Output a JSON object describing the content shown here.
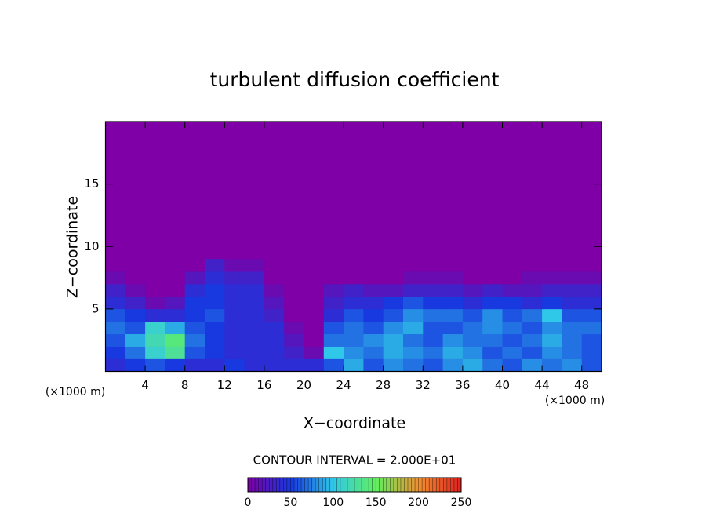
{
  "chart_data": {
    "type": "heatmap",
    "title": "turbulent diffusion coefficient",
    "x_label": "X−coordinate",
    "y_label": "Z−coordinate",
    "x_unit": "(×1000 m)",
    "y_unit": "(×1000 m)",
    "contour_note": "CONTOUR INTERVAL = 2.000E+01",
    "xlim": [
      0,
      50
    ],
    "ylim": [
      0,
      20
    ],
    "xticks": [
      4,
      8,
      12,
      16,
      20,
      24,
      28,
      32,
      36,
      40,
      44,
      48
    ],
    "yticks": [
      5,
      10,
      15
    ],
    "x_edges": [
      0,
      2,
      4,
      6,
      8,
      10,
      12,
      14,
      16,
      18,
      20,
      22,
      24,
      26,
      28,
      30,
      32,
      34,
      36,
      38,
      40,
      42,
      44,
      46,
      48,
      50
    ],
    "z_edges": [
      0,
      1,
      2,
      3,
      4,
      5,
      6,
      7,
      8,
      9
    ],
    "values": [
      [
        40,
        50,
        60,
        50,
        40,
        40,
        50,
        40,
        40,
        40,
        40,
        60,
        90,
        60,
        80,
        70,
        60,
        80,
        90,
        70,
        60,
        80,
        70,
        80,
        60
      ],
      [
        50,
        70,
        110,
        130,
        60,
        50,
        40,
        40,
        40,
        30,
        10,
        100,
        80,
        70,
        90,
        80,
        70,
        90,
        80,
        60,
        70,
        60,
        80,
        70,
        60
      ],
      [
        60,
        90,
        120,
        140,
        70,
        50,
        40,
        40,
        40,
        20,
        0,
        70,
        70,
        80,
        90,
        70,
        60,
        80,
        70,
        70,
        60,
        70,
        90,
        70,
        60
      ],
      [
        70,
        60,
        110,
        90,
        60,
        50,
        40,
        40,
        40,
        10,
        0,
        60,
        70,
        60,
        80,
        90,
        60,
        60,
        70,
        80,
        70,
        60,
        80,
        70,
        70
      ],
      [
        60,
        50,
        40,
        40,
        50,
        60,
        40,
        40,
        30,
        0,
        0,
        40,
        60,
        50,
        60,
        80,
        70,
        70,
        60,
        80,
        60,
        70,
        100,
        60,
        60
      ],
      [
        40,
        30,
        10,
        20,
        50,
        50,
        40,
        40,
        20,
        0,
        0,
        30,
        40,
        40,
        50,
        60,
        50,
        50,
        40,
        50,
        50,
        40,
        50,
        40,
        40
      ],
      [
        30,
        10,
        0,
        0,
        40,
        50,
        40,
        40,
        10,
        0,
        0,
        20,
        30,
        20,
        20,
        30,
        30,
        30,
        20,
        30,
        20,
        20,
        30,
        30,
        30
      ],
      [
        10,
        0,
        0,
        0,
        20,
        40,
        30,
        30,
        0,
        0,
        0,
        0,
        0,
        0,
        0,
        10,
        10,
        10,
        0,
        0,
        0,
        10,
        10,
        10,
        10
      ],
      [
        0,
        0,
        0,
        0,
        0,
        30,
        10,
        10,
        0,
        0,
        0,
        0,
        0,
        0,
        0,
        0,
        0,
        0,
        0,
        0,
        0,
        0,
        0,
        0,
        0
      ]
    ],
    "colorbar": {
      "ticks": [
        0,
        50,
        100,
        150,
        200,
        250
      ],
      "colors": [
        "#7e00a6",
        "#1838e0",
        "#30c8e8",
        "#60f060",
        "#f09030",
        "#e02020"
      ]
    }
  }
}
